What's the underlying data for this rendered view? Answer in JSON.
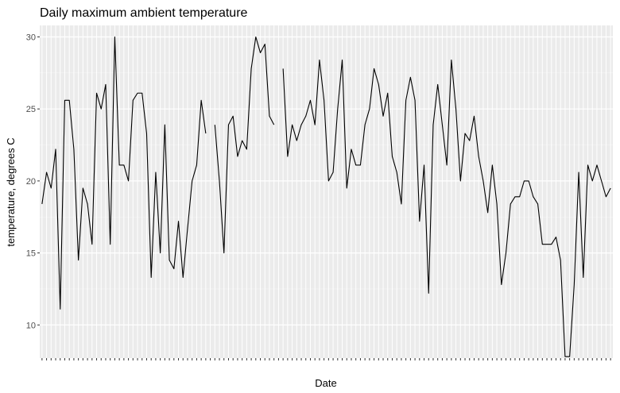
{
  "chart_data": {
    "type": "line",
    "title": "Daily maximum ambient temperature",
    "xlabel": "Date",
    "ylabel": "temperature, degrees C",
    "ylim": [
      7.7,
      30.8
    ],
    "y_ticks": [
      10,
      15,
      20,
      25,
      30
    ],
    "grid": true,
    "background": "#ebebeb",
    "line_color": "#000000",
    "series": [
      {
        "values": [
          18.4,
          20.6,
          19.5,
          22.2,
          11.1,
          25.6,
          25.6,
          22.2,
          14.5,
          19.5,
          18.4,
          15.6,
          26.1,
          25.0,
          26.7,
          15.6,
          30.0,
          21.1,
          21.1,
          20.0,
          25.6,
          26.1,
          26.1,
          23.3,
          13.3,
          20.6,
          15.0,
          23.9,
          14.5,
          13.9,
          17.2,
          13.3,
          16.7,
          20.0,
          21.1,
          25.6,
          23.3,
          null,
          23.9,
          20.0,
          15.0,
          23.9,
          24.5,
          21.7,
          22.8,
          22.2,
          27.8,
          30.0,
          28.9,
          29.5,
          24.5,
          23.9,
          null,
          27.8,
          21.7,
          23.9,
          22.8,
          23.9,
          24.5,
          25.6,
          23.9,
          28.4,
          25.6,
          20.0,
          20.6,
          25.0,
          28.4,
          19.5,
          22.2,
          21.1,
          21.1,
          23.9,
          25.0,
          27.8,
          26.7,
          24.5,
          26.1,
          21.7,
          20.6,
          18.4,
          25.6,
          27.2,
          25.6,
          17.2,
          21.1,
          12.2,
          23.9,
          26.7,
          23.9,
          21.1,
          28.4,
          25.0,
          20.0,
          23.3,
          22.8,
          24.5,
          21.7,
          20.0,
          17.8,
          21.1,
          18.4,
          12.8,
          15.0,
          18.4,
          18.9,
          18.9,
          20.0,
          20.0,
          18.9,
          18.4,
          15.6,
          15.6,
          15.6,
          16.1,
          14.5,
          7.8,
          7.8,
          12.8,
          20.6,
          13.3,
          21.1,
          20.0,
          21.1,
          20.0,
          18.9,
          19.5
        ]
      }
    ]
  }
}
